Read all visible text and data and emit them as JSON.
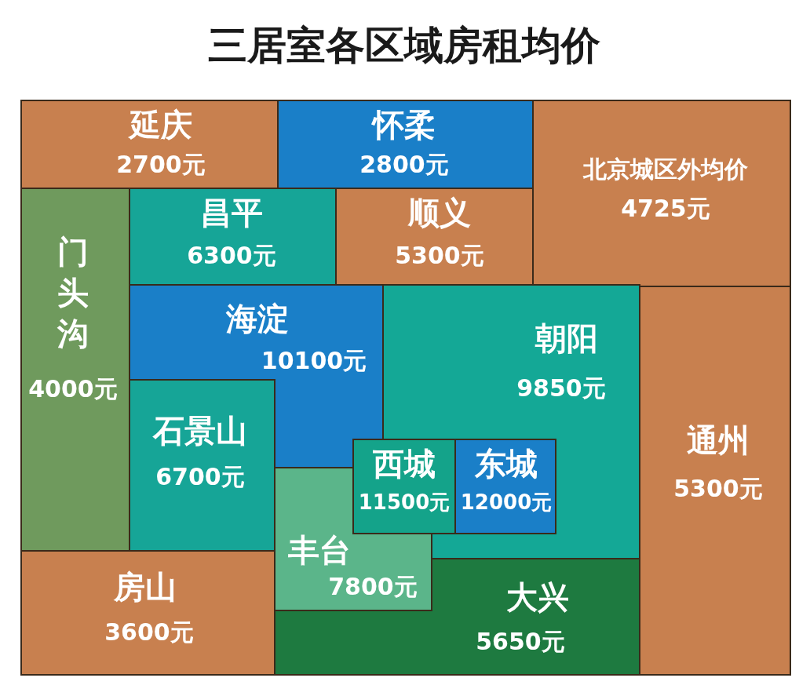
{
  "chart_data": {
    "type": "other",
    "title": "三居室各区域房租均价",
    "categories": [
      "延庆",
      "怀柔",
      "北京城区外均价",
      "门头沟",
      "昌平",
      "顺义",
      "海淀",
      "朝阳",
      "石景山",
      "西城",
      "东城",
      "丰台",
      "大兴",
      "通州",
      "房山"
    ],
    "values": [
      2700,
      2800,
      4725,
      4000,
      6300,
      5300,
      10100,
      9850,
      6700,
      11500,
      12000,
      7800,
      5650,
      5300,
      3600
    ],
    "value_labels": [
      "2700元",
      "2800元",
      "4725元",
      "4000元",
      "6300元",
      "5300元",
      "10100元",
      "9850元",
      "6700元",
      "11500元",
      "12000元",
      "7800元",
      "5650元",
      "5300元",
      "3600元"
    ],
    "colors": [
      "#c8804f",
      "#1a7fc8",
      "#c8804f",
      "#6f9a5d",
      "#16a597",
      "#c8804f",
      "#1a7fc8",
      "#14a896",
      "#16a597",
      "#14a38a",
      "#1a7fc8",
      "#5bb58a",
      "#1e7a40",
      "#c8804f",
      "#c8804f"
    ]
  }
}
